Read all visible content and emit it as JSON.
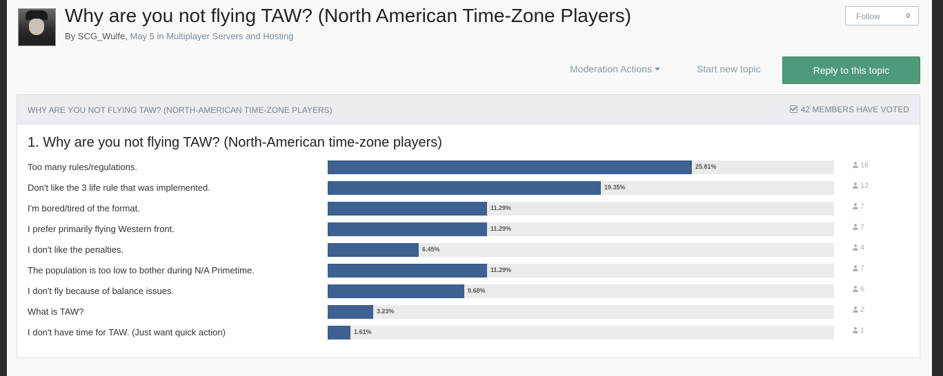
{
  "topic": {
    "title": "Why are you not flying TAW? (North American Time-Zone Players)",
    "author": "SCG_Wulfe",
    "date": "May 5 in",
    "forum": "Multiplayer Servers and Hosting"
  },
  "follow": {
    "label": "Follow",
    "count": "0"
  },
  "actions": {
    "moderation": "Moderation Actions",
    "start_topic": "Start new topic",
    "reply": "Reply to this topic"
  },
  "poll": {
    "header": "WHY ARE YOU NOT FLYING TAW? (NORTH-AMERICAN TIME-ZONE PLAYERS)",
    "votes_label": "42 MEMBERS HAVE VOTED",
    "question": "1. Why are you not flying TAW? (North-American time-zone players)",
    "bar_color": "#3d6190",
    "choices": [
      {
        "label": "Too many rules/regulations.",
        "percent": 25.81,
        "percent_text": "25.81%",
        "votes": "16"
      },
      {
        "label": "Don't like the 3 life rule that was implemented.",
        "percent": 19.35,
        "percent_text": "19.35%",
        "votes": "12"
      },
      {
        "label": "I'm bored/tired of the format.",
        "percent": 11.29,
        "percent_text": "11.29%",
        "votes": "7"
      },
      {
        "label": "I prefer primarily flying Western front.",
        "percent": 11.29,
        "percent_text": "11.29%",
        "votes": "7"
      },
      {
        "label": "I don't like the penalties.",
        "percent": 6.45,
        "percent_text": "6.45%",
        "votes": "4"
      },
      {
        "label": "The population is too low to bother during N/A Primetime.",
        "percent": 11.29,
        "percent_text": "11.29%",
        "votes": "7"
      },
      {
        "label": "I don't fly because of balance issues.",
        "percent": 9.68,
        "percent_text": "9.68%",
        "votes": "6"
      },
      {
        "label": "What is TAW?",
        "percent": 3.23,
        "percent_text": "3.23%",
        "votes": "2"
      },
      {
        "label": "I don't have time for TAW. (Just want quick action)",
        "percent": 1.61,
        "percent_text": "1.61%",
        "votes": "1"
      }
    ]
  }
}
